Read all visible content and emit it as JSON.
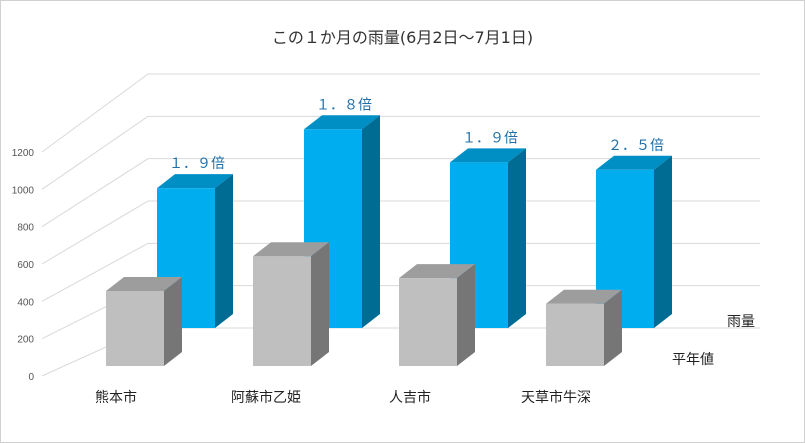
{
  "chart_data": {
    "type": "bar",
    "title": "この１か月の雨量(6月2日～7月1日)",
    "categories": [
      "熊本市",
      "阿蘇市乙姫",
      "人吉市",
      "天草市牛深"
    ],
    "series": [
      {
        "name": "平年値",
        "values": [
          410,
          600,
          480,
          340
        ],
        "color": "#bfbfbf"
      },
      {
        "name": "雨量",
        "values": [
          760,
          1080,
          900,
          860
        ],
        "color": "#00aeef",
        "data_labels": [
          "１．９倍",
          "１．８倍",
          "１．９倍",
          "２．５倍"
        ]
      }
    ],
    "yticks": [
      0,
      200,
      400,
      600,
      800,
      1000,
      1200
    ],
    "ylim": [
      0,
      1200
    ],
    "grid": true,
    "projection": "3d",
    "data_label_color": "#1f6fa8"
  }
}
